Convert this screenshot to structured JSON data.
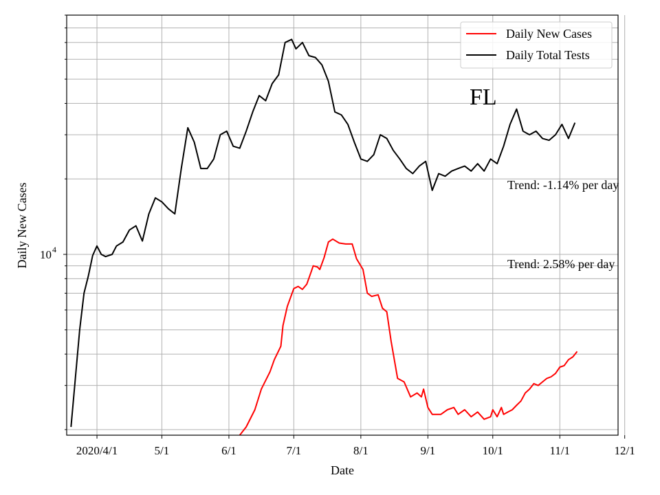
{
  "chart_data": {
    "type": "line",
    "title": "",
    "xlabel": "Date",
    "ylabel": "Daily New Cases",
    "yscale": "log",
    "ylim": [
      1900,
      90000
    ],
    "grid": true,
    "legend_position": "top-right",
    "x_ticks": [
      "2020/4/1",
      "5/1",
      "6/1",
      "7/1",
      "8/1",
      "9/1",
      "10/1",
      "11/1",
      "12/1"
    ],
    "y_tick_label": {
      "base": "10",
      "exp": "4"
    },
    "state_label": "FL",
    "annotations": [
      "Trend: -1.14% per day",
      "Trend: 2.58% per day"
    ],
    "colors": {
      "cases": "#ff0000",
      "tests": "#000000"
    },
    "series": [
      {
        "name": "Daily New Cases",
        "color": "#ff0000",
        "x": [
          "2020-06-06",
          "2020-06-09",
          "2020-06-13",
          "2020-06-16",
          "2020-06-20",
          "2020-06-22",
          "2020-06-25",
          "2020-06-26",
          "2020-06-28",
          "2020-07-01",
          "2020-07-03",
          "2020-07-05",
          "2020-07-07",
          "2020-07-09",
          "2020-07-10",
          "2020-07-12",
          "2020-07-13",
          "2020-07-15",
          "2020-07-17",
          "2020-07-19",
          "2020-07-22",
          "2020-07-25",
          "2020-07-28",
          "2020-07-30",
          "2020-08-02",
          "2020-08-04",
          "2020-08-06",
          "2020-08-09",
          "2020-08-11",
          "2020-08-13",
          "2020-08-15",
          "2020-08-18",
          "2020-08-21",
          "2020-08-24",
          "2020-08-27",
          "2020-08-29",
          "2020-08-30",
          "2020-09-01",
          "2020-09-03",
          "2020-09-07",
          "2020-09-10",
          "2020-09-13",
          "2020-09-15",
          "2020-09-18",
          "2020-09-21",
          "2020-09-24",
          "2020-09-27",
          "2020-09-30",
          "2020-10-01",
          "2020-10-03",
          "2020-10-05",
          "2020-10-06",
          "2020-10-08",
          "2020-10-10",
          "2020-10-12",
          "2020-10-14",
          "2020-10-16",
          "2020-10-18",
          "2020-10-20",
          "2020-10-22",
          "2020-10-24",
          "2020-10-26",
          "2020-10-28",
          "2020-10-30",
          "2020-11-01",
          "2020-11-03",
          "2020-11-05",
          "2020-11-07",
          "2020-11-09"
        ],
        "values": [
          1900,
          2050,
          2400,
          2900,
          3400,
          3800,
          4300,
          5200,
          6200,
          7300,
          7450,
          7250,
          7600,
          8500,
          9000,
          8900,
          8700,
          9700,
          11200,
          11500,
          11100,
          11000,
          11000,
          9600,
          8700,
          7000,
          6800,
          6900,
          6100,
          5900,
          4500,
          3200,
          3100,
          2700,
          2800,
          2700,
          2900,
          2450,
          2300,
          2300,
          2400,
          2450,
          2300,
          2400,
          2250,
          2350,
          2200,
          2250,
          2400,
          2250,
          2450,
          2300,
          2350,
          2400,
          2500,
          2600,
          2800,
          2900,
          3050,
          3000,
          3100,
          3200,
          3250,
          3350,
          3550,
          3600,
          3800,
          3900,
          4100
        ]
      },
      {
        "name": "Daily Total Tests",
        "color": "#000000",
        "x": [
          "2020-03-20",
          "2020-03-22",
          "2020-03-24",
          "2020-03-26",
          "2020-03-28",
          "2020-03-30",
          "2020-04-01",
          "2020-04-03",
          "2020-04-05",
          "2020-04-08",
          "2020-04-10",
          "2020-04-13",
          "2020-04-16",
          "2020-04-19",
          "2020-04-22",
          "2020-04-25",
          "2020-04-28",
          "2020-05-01",
          "2020-05-04",
          "2020-05-07",
          "2020-05-10",
          "2020-05-13",
          "2020-05-16",
          "2020-05-19",
          "2020-05-22",
          "2020-05-25",
          "2020-05-28",
          "2020-05-31",
          "2020-06-03",
          "2020-06-06",
          "2020-06-09",
          "2020-06-12",
          "2020-06-15",
          "2020-06-18",
          "2020-06-21",
          "2020-06-24",
          "2020-06-27",
          "2020-06-30",
          "2020-07-02",
          "2020-07-05",
          "2020-07-08",
          "2020-07-11",
          "2020-07-14",
          "2020-07-17",
          "2020-07-20",
          "2020-07-23",
          "2020-07-26",
          "2020-07-29",
          "2020-08-01",
          "2020-08-04",
          "2020-08-07",
          "2020-08-10",
          "2020-08-13",
          "2020-08-16",
          "2020-08-19",
          "2020-08-22",
          "2020-08-25",
          "2020-08-28",
          "2020-08-31",
          "2020-09-03",
          "2020-09-06",
          "2020-09-09",
          "2020-09-12",
          "2020-09-15",
          "2020-09-18",
          "2020-09-21",
          "2020-09-24",
          "2020-09-27",
          "2020-09-30",
          "2020-10-03",
          "2020-10-06",
          "2020-10-09",
          "2020-10-12",
          "2020-10-15",
          "2020-10-18",
          "2020-10-21",
          "2020-10-24",
          "2020-10-27",
          "2020-10-30",
          "2020-11-02",
          "2020-11-05",
          "2020-11-08"
        ],
        "values": [
          2050,
          3200,
          5000,
          7000,
          8200,
          9900,
          10800,
          10000,
          9800,
          10000,
          10800,
          11200,
          12500,
          13000,
          11300,
          14500,
          16800,
          16200,
          15200,
          14500,
          22000,
          32000,
          28000,
          22000,
          22000,
          24000,
          30000,
          31000,
          27000,
          26500,
          31000,
          37000,
          43000,
          41000,
          48000,
          52000,
          70000,
          72000,
          66000,
          70000,
          62000,
          61000,
          57000,
          49000,
          37000,
          36000,
          33000,
          28000,
          24000,
          23500,
          25000,
          30000,
          29000,
          26000,
          24000,
          22000,
          21000,
          22500,
          23500,
          18000,
          21000,
          20500,
          21500,
          22000,
          22500,
          21500,
          23000,
          21500,
          24000,
          23000,
          27000,
          33000,
          38000,
          31000,
          30000,
          31000,
          29000,
          28500,
          30000,
          33000,
          29000,
          33500
        ]
      }
    ]
  }
}
